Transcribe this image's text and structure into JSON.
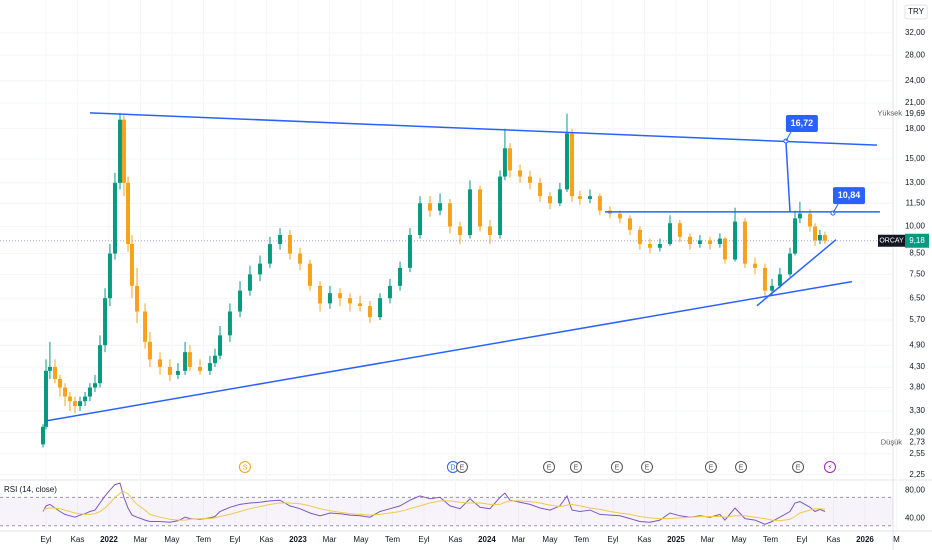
{
  "chart_data": {
    "type": "candlestick",
    "symbol": "ORCAY",
    "currency": "TRY",
    "log_scale": true,
    "grid": true,
    "colors": {
      "up": "#089981",
      "down": "#f7a21b",
      "line": "#2962ff",
      "last": "#089981"
    },
    "xlim": [
      -2.92,
      53.78
    ],
    "xticks": [
      {
        "value": 0,
        "label": "Eyl"
      },
      {
        "value": 2,
        "label": "Kas"
      },
      {
        "value": 4,
        "label": "2022"
      },
      {
        "value": 6,
        "label": "Mar"
      },
      {
        "value": 8,
        "label": "May"
      },
      {
        "value": 10,
        "label": "Tem"
      },
      {
        "value": 12,
        "label": "Eyl"
      },
      {
        "value": 14,
        "label": "Kas"
      },
      {
        "value": 16,
        "label": "2023"
      },
      {
        "value": 18,
        "label": "Mar"
      },
      {
        "value": 20,
        "label": "May"
      },
      {
        "value": 22,
        "label": "Tem"
      },
      {
        "value": 24,
        "label": "Eyl"
      },
      {
        "value": 26,
        "label": "Kas"
      },
      {
        "value": 28,
        "label": "2024"
      },
      {
        "value": 30,
        "label": "Mar"
      },
      {
        "value": 32,
        "label": "May"
      },
      {
        "value": 34,
        "label": "Tem"
      },
      {
        "value": 36,
        "label": "Eyl"
      },
      {
        "value": 38,
        "label": "Kas"
      },
      {
        "value": 40,
        "label": "2025"
      },
      {
        "value": 42,
        "label": "Mar"
      },
      {
        "value": 44,
        "label": "May"
      },
      {
        "value": 46,
        "label": "Tem"
      },
      {
        "value": 48,
        "label": "Eyl"
      },
      {
        "value": 50,
        "label": "Kas"
      },
      {
        "value": 52,
        "label": "2026"
      },
      {
        "value": 54,
        "label": "M"
      }
    ],
    "ylim": [
      2.18,
      39.0
    ],
    "yticks": [
      {
        "value": 2.25,
        "label": "2,25"
      },
      {
        "value": 2.55,
        "label": "2,55"
      },
      {
        "value": 2.9,
        "label": "2,90"
      },
      {
        "value": 3.3,
        "label": "3,30"
      },
      {
        "value": 3.8,
        "label": "3,80"
      },
      {
        "value": 4.3,
        "label": "4,30"
      },
      {
        "value": 4.9,
        "label": "4,90"
      },
      {
        "value": 5.7,
        "label": "5,70"
      },
      {
        "value": 6.5,
        "label": "6,50"
      },
      {
        "value": 7.5,
        "label": "7,50"
      },
      {
        "value": 8.5,
        "label": "8,50"
      },
      {
        "value": 10,
        "label": "10,00"
      },
      {
        "value": 11.5,
        "label": "11,50"
      },
      {
        "value": 13,
        "label": "13,00"
      },
      {
        "value": 15,
        "label": "15,00"
      },
      {
        "value": 18,
        "label": "18,00"
      },
      {
        "value": 21,
        "label": "21,00"
      },
      {
        "value": 24,
        "label": "24,00"
      },
      {
        "value": 28,
        "label": "28,00"
      },
      {
        "value": 32,
        "label": "32,00"
      }
    ],
    "candles": {
      "x": [
        -0.19,
        0,
        0.25,
        0.57,
        0.89,
        1.21,
        1.52,
        1.84,
        2.16,
        2.48,
        2.79,
        3.11,
        3.43,
        3.75,
        4.06,
        4.38,
        4.7,
        4.95,
        5.21,
        5.46,
        5.78,
        6.29,
        6.6,
        7.24,
        7.87,
        8.38,
        8.83,
        9.14,
        9.78,
        10.41,
        10.73,
        11.05,
        11.68,
        12.32,
        12.95,
        13.59,
        14.22,
        14.86,
        15.49,
        16.13,
        16.76,
        17.4,
        18.03,
        18.67,
        19.3,
        19.94,
        20.57,
        21.21,
        21.84,
        22.48,
        23.11,
        23.75,
        24.38,
        25.02,
        25.65,
        26.29,
        26.92,
        27.56,
        28.19,
        28.83,
        29.14,
        29.46,
        30.1,
        30.73,
        31.37,
        32,
        32.63,
        33.08,
        33.4,
        33.9,
        34.54,
        35.17,
        35.81,
        36.44,
        37.08,
        37.71,
        38.35,
        38.98,
        39.62,
        40.25,
        40.89,
        41.52,
        42.16,
        42.79,
        43.11,
        43.75,
        44.38,
        45.02,
        45.65,
        46.1,
        46.6,
        47.24,
        47.56,
        47.87,
        48.51,
        48.83,
        49.14,
        49.46
      ],
      "open": [
        2.7,
        3.0,
        4.2,
        4.3,
        4.0,
        3.8,
        3.6,
        3.5,
        3.4,
        3.5,
        3.6,
        3.8,
        3.9,
        4.9,
        6.5,
        8.5,
        13,
        19,
        13,
        9,
        7,
        6,
        5,
        4.5,
        4.3,
        4.1,
        4.2,
        4.7,
        4.3,
        4.2,
        4.4,
        4.6,
        5.2,
        6.0,
        6.8,
        7.5,
        8.0,
        9.0,
        9.5,
        8.5,
        8.0,
        7.0,
        6.3,
        6.7,
        6.5,
        6.3,
        6.2,
        5.8,
        6.5,
        7.0,
        7.8,
        9.5,
        11.5,
        11.0,
        11.5,
        10.0,
        9.5,
        12.5,
        10.0,
        9.5,
        13.5,
        16.0,
        14.0,
        13.5,
        13.0,
        12.0,
        11.5,
        12.5,
        17.5,
        12.0,
        11.8,
        12.0,
        11.0,
        10.8,
        10.5,
        9.8,
        9.0,
        8.8,
        9.0,
        10.2,
        9.4,
        9.0,
        9.2,
        9.0,
        9.3,
        8.2,
        10.3,
        8.0,
        7.8,
        6.8,
        7.0,
        7.5,
        8.5,
        10.5,
        10.8,
        10.0,
        9.2,
        9.5
      ],
      "high": [
        3.05,
        4.5,
        5.0,
        4.5,
        4.1,
        3.9,
        3.7,
        3.6,
        3.6,
        3.7,
        3.9,
        4.1,
        5.2,
        6.9,
        9.0,
        13.8,
        19.8,
        19.5,
        13.5,
        9.5,
        7.8,
        6.3,
        5.3,
        4.7,
        4.5,
        4.4,
        5.0,
        4.9,
        4.5,
        4.6,
        4.8,
        5.5,
        6.3,
        7.2,
        7.9,
        8.4,
        9.4,
        9.9,
        9.8,
        8.8,
        8.2,
        7.2,
        7.0,
        6.9,
        6.7,
        6.6,
        6.4,
        6.7,
        7.3,
        8.1,
        9.9,
        12.0,
        12.0,
        12.2,
        11.8,
        10.3,
        13.2,
        12.8,
        10.4,
        14.0,
        18.0,
        16.5,
        14.5,
        14.0,
        13.4,
        12.3,
        13.0,
        19.7,
        18.0,
        12.4,
        12.5,
        12.2,
        11.3,
        11.0,
        10.7,
        10.0,
        9.3,
        9.3,
        10.7,
        10.4,
        9.6,
        9.5,
        9.4,
        9.6,
        9.4,
        11.2,
        10.5,
        8.3,
        8.0,
        7.3,
        7.8,
        8.8,
        11.0,
        11.6,
        11.1,
        10.2,
        9.8,
        9.7
      ],
      "low": [
        2.65,
        2.95,
        4.0,
        3.9,
        3.6,
        3.4,
        3.3,
        3.25,
        3.3,
        3.4,
        3.5,
        3.7,
        3.8,
        4.7,
        6.2,
        8.2,
        12.5,
        12,
        8.6,
        6.5,
        5.6,
        4.8,
        4.3,
        4.1,
        3.95,
        4.0,
        4.1,
        4.2,
        4.1,
        4.1,
        4.3,
        4.5,
        5.0,
        5.8,
        6.6,
        7.2,
        7.8,
        8.7,
        8.2,
        7.7,
        6.8,
        6.0,
        6.1,
        6.2,
        6.0,
        6.0,
        5.6,
        5.7,
        6.3,
        6.8,
        7.6,
        9.3,
        10.6,
        10.7,
        9.6,
        9.0,
        9.3,
        9.7,
        9.0,
        9.3,
        13.2,
        13.4,
        13.0,
        12.5,
        11.6,
        11.1,
        11.3,
        12.3,
        11.6,
        11.4,
        11.5,
        10.7,
        10.5,
        10.2,
        9.5,
        8.7,
        8.5,
        8.6,
        8.9,
        9.1,
        8.7,
        8.8,
        8.7,
        8.8,
        8.0,
        8.1,
        7.8,
        7.5,
        6.6,
        6.6,
        6.9,
        7.4,
        8.4,
        10.2,
        9.7,
        8.9,
        9.0,
        9.0
      ],
      "close": [
        3.0,
        4.2,
        4.3,
        4.0,
        3.8,
        3.6,
        3.5,
        3.4,
        3.5,
        3.6,
        3.8,
        3.9,
        4.9,
        6.5,
        8.5,
        13,
        19,
        13,
        9,
        7,
        6,
        5,
        4.5,
        4.3,
        4.1,
        4.2,
        4.7,
        4.3,
        4.2,
        4.4,
        4.6,
        5.2,
        6.0,
        6.8,
        7.5,
        8.0,
        9.0,
        9.5,
        8.5,
        8.0,
        7.0,
        6.3,
        6.7,
        6.5,
        6.3,
        6.2,
        5.8,
        6.5,
        7.0,
        7.8,
        9.5,
        11.5,
        11.0,
        11.5,
        10.0,
        9.5,
        12.5,
        10.0,
        9.5,
        13.5,
        16.0,
        14.0,
        13.5,
        13.0,
        12.0,
        11.5,
        12.5,
        17.5,
        12.0,
        11.8,
        12.0,
        11.0,
        10.8,
        10.5,
        9.8,
        9.0,
        8.8,
        9.0,
        10.2,
        9.4,
        9.0,
        9.2,
        9.0,
        9.3,
        8.2,
        10.3,
        8.0,
        7.8,
        6.8,
        7.0,
        7.5,
        8.5,
        10.5,
        10.8,
        10.0,
        9.2,
        9.5,
        9.18
      ]
    },
    "last": {
      "value": 9.18,
      "label": "9,18"
    },
    "high_label": "Yüksek",
    "high": {
      "value": 19.69,
      "label": "19,69"
    },
    "low_label": "Düşük",
    "low": {
      "value": 2.73,
      "label": "2,73"
    },
    "trendlines": [
      {
        "x": [
          2.79,
          52.76
        ],
        "y": [
          19.8,
          16.3
        ]
      },
      {
        "x": [
          0,
          51.17
        ],
        "y": [
          3.11,
          7.18
        ]
      },
      {
        "x": [
          45.14,
          50.16
        ],
        "y": [
          6.21,
          9.24
        ]
      },
      {
        "x": [
          35.49,
          52.95
        ],
        "y": [
          10.92,
          10.92
        ]
      },
      {
        "x": [
          46.98,
          47.24
        ],
        "y": [
          16.72,
          10.92
        ]
      }
    ],
    "callouts": [
      {
        "x": 46.98,
        "value": 16.72,
        "label": "16,72"
      },
      {
        "x": 49.97,
        "value": 10.84,
        "label": "10,84"
      }
    ],
    "events": [
      {
        "x": 12.63,
        "label": "S",
        "color": "#f7a21b"
      },
      {
        "x": 25.84,
        "label": "D",
        "color": "#2962ff"
      },
      {
        "x": 26.41,
        "label": "E",
        "color": "#555555"
      },
      {
        "x": 31.94,
        "label": "E",
        "color": "#555555"
      },
      {
        "x": 33.65,
        "label": "E",
        "color": "#555555"
      },
      {
        "x": 36.25,
        "label": "E",
        "color": "#555555"
      },
      {
        "x": 38.16,
        "label": "E",
        "color": "#555555"
      },
      {
        "x": 42.22,
        "label": "E",
        "color": "#555555"
      },
      {
        "x": 44.13,
        "label": "E",
        "color": "#555555"
      },
      {
        "x": 47.75,
        "label": "E",
        "color": "#555555"
      },
      {
        "x": 49.78,
        "label": "⚡",
        "color": "#9c27b0"
      }
    ],
    "rsi": {
      "title": "RSI (14, close)",
      "ylim": [
        24,
        93
      ],
      "yticks": [
        {
          "value": 80,
          "label": "80,00"
        },
        {
          "value": 40,
          "label": "40,00"
        }
      ],
      "bands": [
        30,
        70
      ],
      "series": [
        {
          "color": "#7e57c2",
          "values": [
            50,
            58,
            60,
            55,
            50,
            46,
            44,
            42,
            45,
            47,
            50,
            52,
            62,
            72,
            80,
            88,
            90,
            70,
            55,
            45,
            42,
            38,
            36,
            36,
            35,
            37,
            42,
            40,
            39,
            41,
            43,
            50,
            56,
            60,
            62,
            63,
            65,
            66,
            58,
            54,
            48,
            44,
            48,
            47,
            45,
            44,
            42,
            50,
            54,
            58,
            66,
            72,
            68,
            70,
            58,
            54,
            68,
            56,
            54,
            70,
            76,
            66,
            63,
            60,
            55,
            52,
            58,
            72,
            52,
            50,
            52,
            46,
            45,
            44,
            40,
            36,
            35,
            38,
            48,
            44,
            42,
            44,
            42,
            46,
            38,
            55,
            40,
            38,
            32,
            36,
            42,
            50,
            62,
            64,
            56,
            50,
            53,
            50
          ]
        },
        {
          "color": "#f2c94c",
          "values": [
            52,
            54,
            55,
            55,
            54,
            52,
            50,
            48,
            47,
            46,
            46,
            47,
            50,
            55,
            62,
            70,
            76,
            78,
            75,
            68,
            60,
            52,
            46,
            42,
            39,
            38,
            38,
            39,
            40,
            40,
            41,
            43,
            46,
            50,
            54,
            57,
            60,
            62,
            62,
            61,
            58,
            54,
            51,
            49,
            47,
            46,
            45,
            46,
            48,
            50,
            54,
            58,
            62,
            65,
            65,
            63,
            62,
            62,
            60,
            60,
            63,
            65,
            65,
            64,
            62,
            59,
            57,
            59,
            60,
            58,
            55,
            53,
            50,
            48,
            46,
            43,
            41,
            40,
            40,
            41,
            42,
            43,
            43,
            43,
            42,
            44,
            44,
            42,
            40,
            38,
            37,
            39,
            43,
            48,
            52,
            54,
            54,
            53
          ]
        }
      ]
    }
  }
}
